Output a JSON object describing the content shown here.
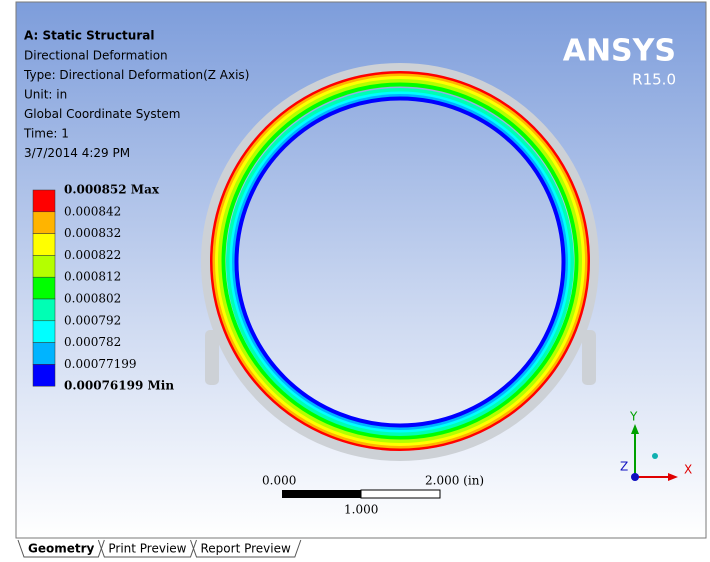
{
  "header": {
    "title": "A: Static Structural",
    "lines": [
      "Directional Deformation",
      "Type: Directional Deformation(Z Axis)",
      "Unit: in",
      "Global Coordinate System",
      "Time: 1",
      "3/7/2014 4:29 PM"
    ]
  },
  "logo": {
    "name": "ANSYS",
    "version": "R15.0"
  },
  "legend": {
    "labels": [
      "0.000852 Max",
      "0.000842",
      "0.000832",
      "0.000822",
      "0.000812",
      "0.000802",
      "0.000792",
      "0.000782",
      "0.00077199",
      "0.00076199 Min"
    ],
    "colors": [
      "#ff0000",
      "#ffb400",
      "#ffff00",
      "#b4ff00",
      "#00ff00",
      "#00ffb4",
      "#00ffff",
      "#00b4ff",
      "#0000ff"
    ]
  },
  "scale": {
    "start": "0.000",
    "end": "2.000 (in)",
    "mid": "1.000"
  },
  "triad": {
    "y": "Y",
    "z": "Z",
    "x": "X"
  },
  "tabs": [
    "Geometry",
    "Print Preview",
    "Report Preview"
  ]
}
